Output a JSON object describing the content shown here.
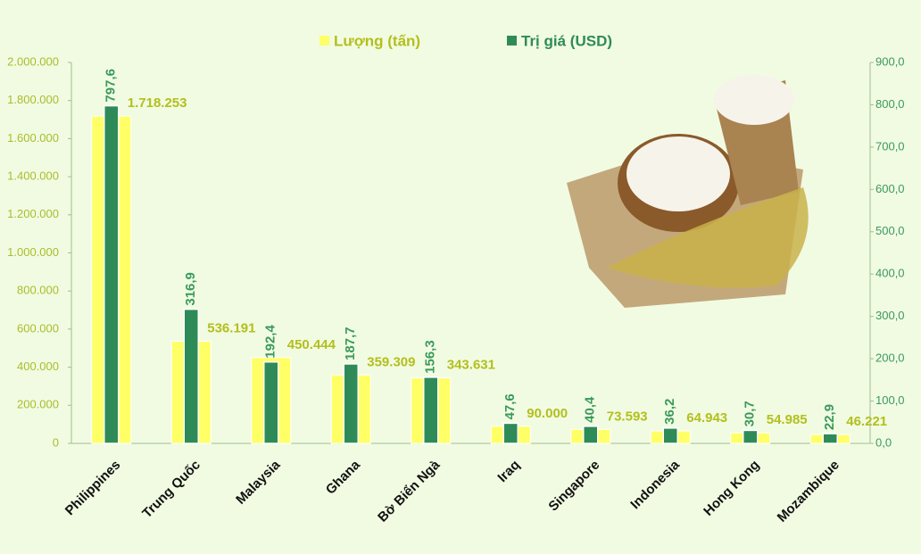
{
  "chart_data": {
    "type": "bar",
    "categories": [
      "Philippines",
      "Trung Quốc",
      "Malaysia",
      "Ghana",
      "Bờ Biển Ngà",
      "Iraq",
      "Singapore",
      "Indonesia",
      "Hong Kong",
      "Mozambique"
    ],
    "series": [
      {
        "name": "Lượng (tấn)",
        "color": "#ffff66",
        "values": [
          1718253,
          536191,
          450444,
          359309,
          343631,
          90000,
          73593,
          64943,
          54985,
          46221
        ],
        "value_labels": [
          "1.718.253",
          "536.191",
          "450.444",
          "359.309",
          "343.631",
          "90.000",
          "73.593",
          "64.943",
          "54.985",
          "46.221"
        ]
      },
      {
        "name": "Trị giá (USD)",
        "color": "#2e8b57",
        "axis": "y2",
        "values": [
          797.6,
          316.9,
          192.4,
          187.7,
          156.3,
          47.6,
          40.4,
          36.2,
          30.7,
          22.9
        ],
        "value_labels": [
          "797,6",
          "316,9",
          "192,4",
          "187,7",
          "156,3",
          "47,6",
          "40,4",
          "36,2",
          "30,7",
          "22,9"
        ]
      }
    ],
    "ylim": [
      0,
      2000000
    ],
    "yticks": [
      0,
      {
        "value": 200000,
        "label": "200.000"
      },
      {
        "value": 400000,
        "label": "400.000"
      },
      {
        "value": 600000,
        "label": "600.000"
      },
      {
        "value": 800000,
        "label": "800.000"
      },
      {
        "value": 1000000,
        "label": "1.000.000"
      },
      {
        "value": 1200000,
        "label": "1.200.000"
      },
      {
        "value": 1400000,
        "label": "1.400.000"
      },
      {
        "value": 1600000,
        "label": "1.600.000"
      },
      {
        "value": 1800000,
        "label": "1.800.000"
      },
      {
        "value": 2000000,
        "label": "2.000.000"
      }
    ],
    "y2lim": [
      0,
      900
    ],
    "y2ticks": [
      {
        "value": 0,
        "label": "0,0"
      },
      {
        "value": 100,
        "label": "100,0"
      },
      {
        "value": 200,
        "label": "200,0"
      },
      {
        "value": 300,
        "label": "300,0"
      },
      {
        "value": 400,
        "label": "400,0"
      },
      {
        "value": 500,
        "label": "500,0"
      },
      {
        "value": 600,
        "label": "600,0"
      },
      {
        "value": 700,
        "label": "700,0"
      },
      {
        "value": 800,
        "label": "800,0"
      },
      {
        "value": 900,
        "label": "900,0"
      }
    ]
  }
}
